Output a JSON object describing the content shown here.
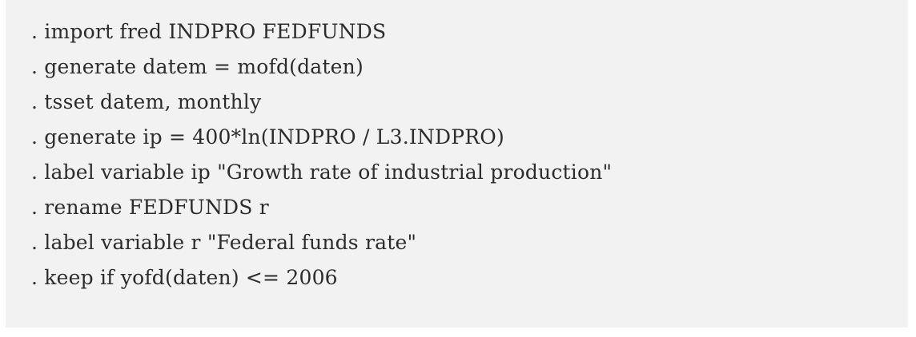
{
  "code": {
    "lines": [
      ". import fred INDPRO FEDFUNDS",
      ". generate datem = mofd(daten)",
      ". tsset datem, monthly",
      ". generate ip = 400*ln(INDPRO / L3.INDPRO)",
      ". label variable ip \"Growth rate of industrial production\"",
      ". rename FEDFUNDS r",
      ". label variable r \"Federal funds rate\"",
      ". keep if yofd(daten) <= 2006"
    ]
  },
  "colors": {
    "background": "#f2f2f2",
    "text": "#2c2c2c"
  }
}
